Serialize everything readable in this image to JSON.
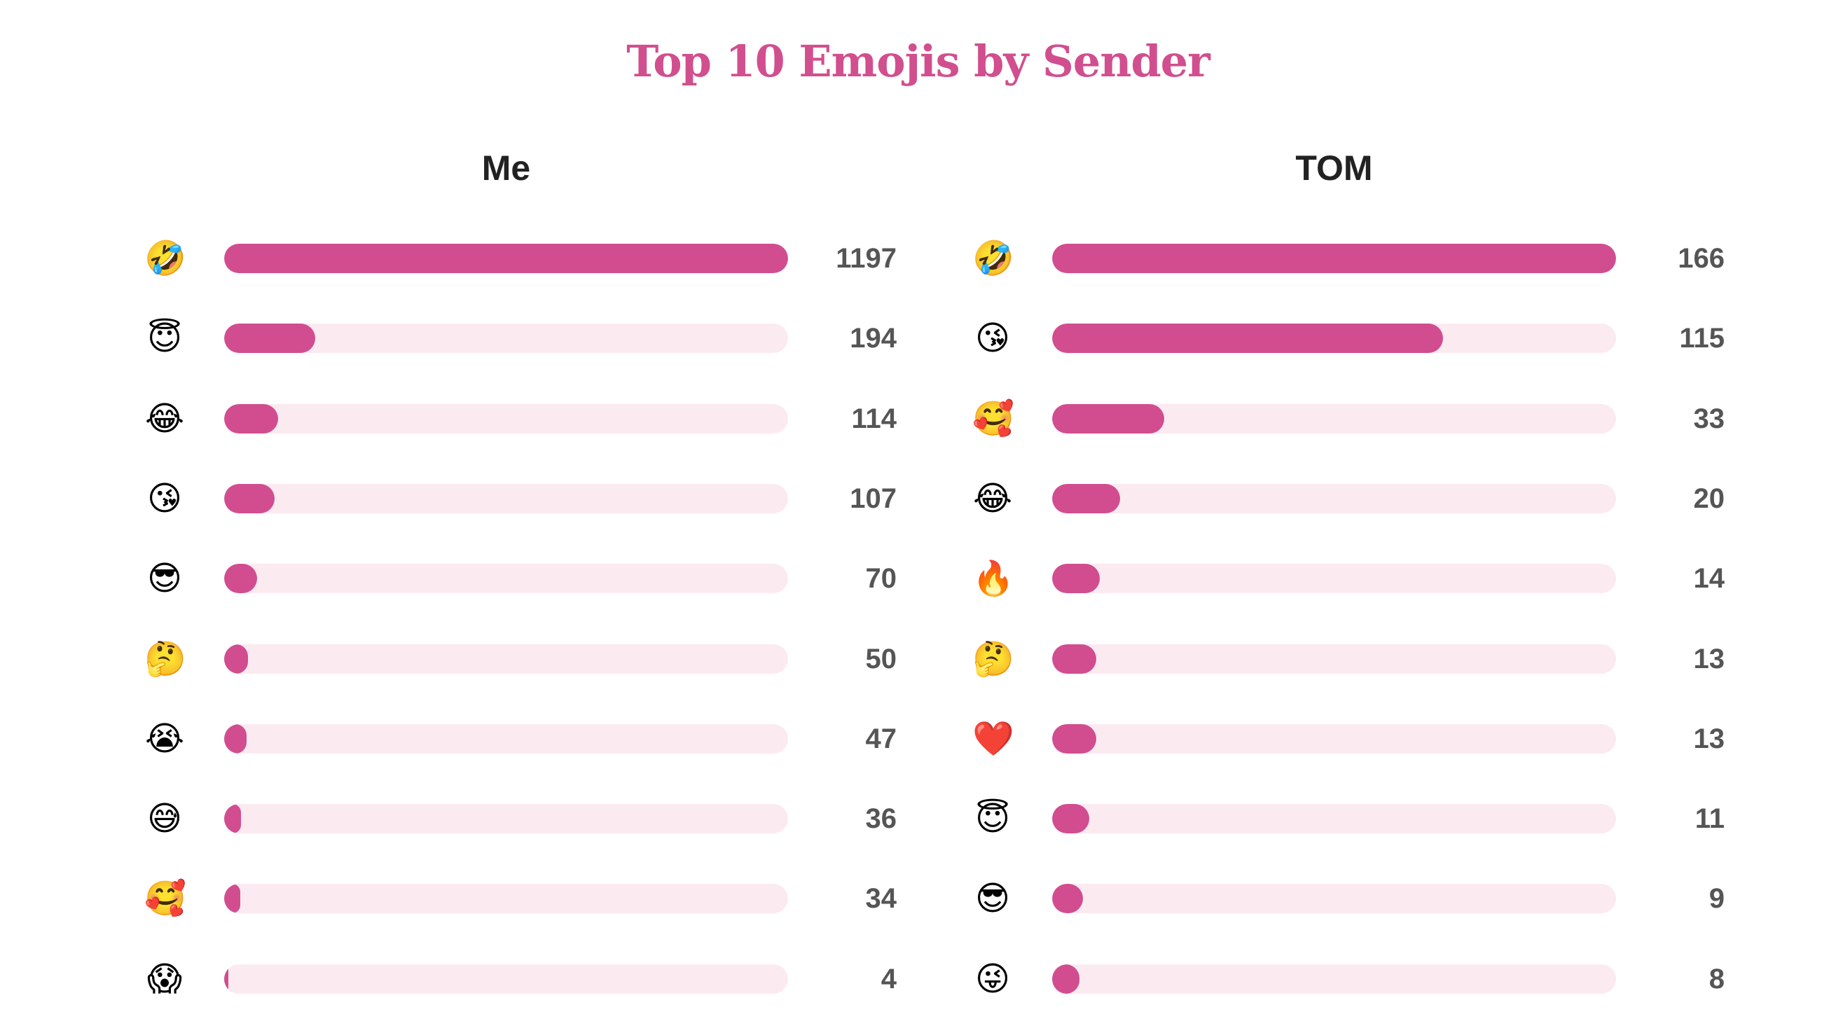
{
  "colors": {
    "title": "#D14F8E",
    "bar_fill": "#D14D8F",
    "bar_track": "#FCEAF1"
  },
  "chart_data": {
    "type": "bar",
    "title": "Top 10 Emojis by Sender",
    "panels": [
      {
        "name": "Me",
        "categories": [
          "🤣",
          "😇",
          "😂",
          "😘",
          "😎",
          "🤔",
          "😭",
          "😅",
          "🥰",
          "😱"
        ],
        "values": [
          1197,
          194,
          114,
          107,
          70,
          50,
          47,
          36,
          34,
          4
        ],
        "xlim": [
          0,
          1197
        ]
      },
      {
        "name": "TOM",
        "categories": [
          "🤣",
          "😘",
          "🥰",
          "😂",
          "🔥",
          "🤔",
          "❤️",
          "😇",
          "😎",
          "😜"
        ],
        "values": [
          166,
          115,
          33,
          20,
          14,
          13,
          13,
          11,
          9,
          8
        ],
        "xlim": [
          0,
          166
        ]
      }
    ]
  }
}
